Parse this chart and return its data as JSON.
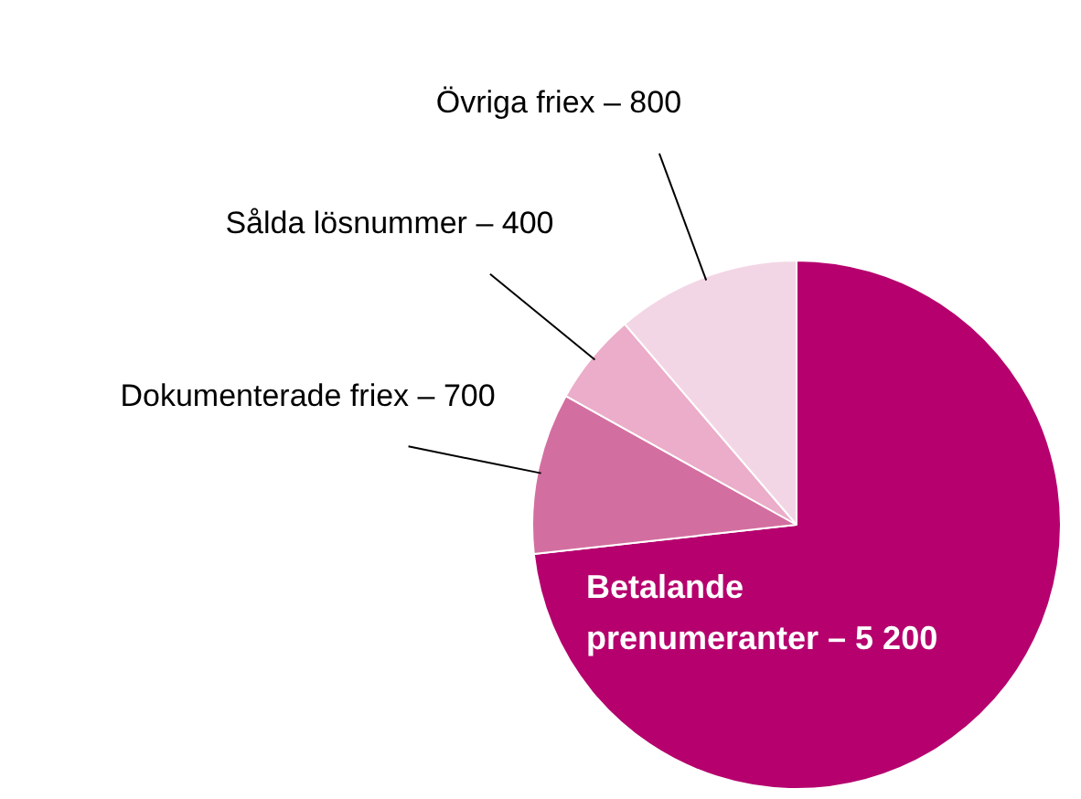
{
  "chart_data": {
    "type": "pie",
    "categories": [
      "Betalande prenumeranter",
      "Dokumenterade friex",
      "Sålda lösnummer",
      "Övriga friex"
    ],
    "values": [
      5200,
      700,
      400,
      800
    ],
    "value_labels": [
      "5 200",
      "700",
      "400",
      "800"
    ],
    "colors": [
      "#b5006e",
      "#d36fa0",
      "#ebadc9",
      "#f3d6e5"
    ],
    "legend": false
  }
}
